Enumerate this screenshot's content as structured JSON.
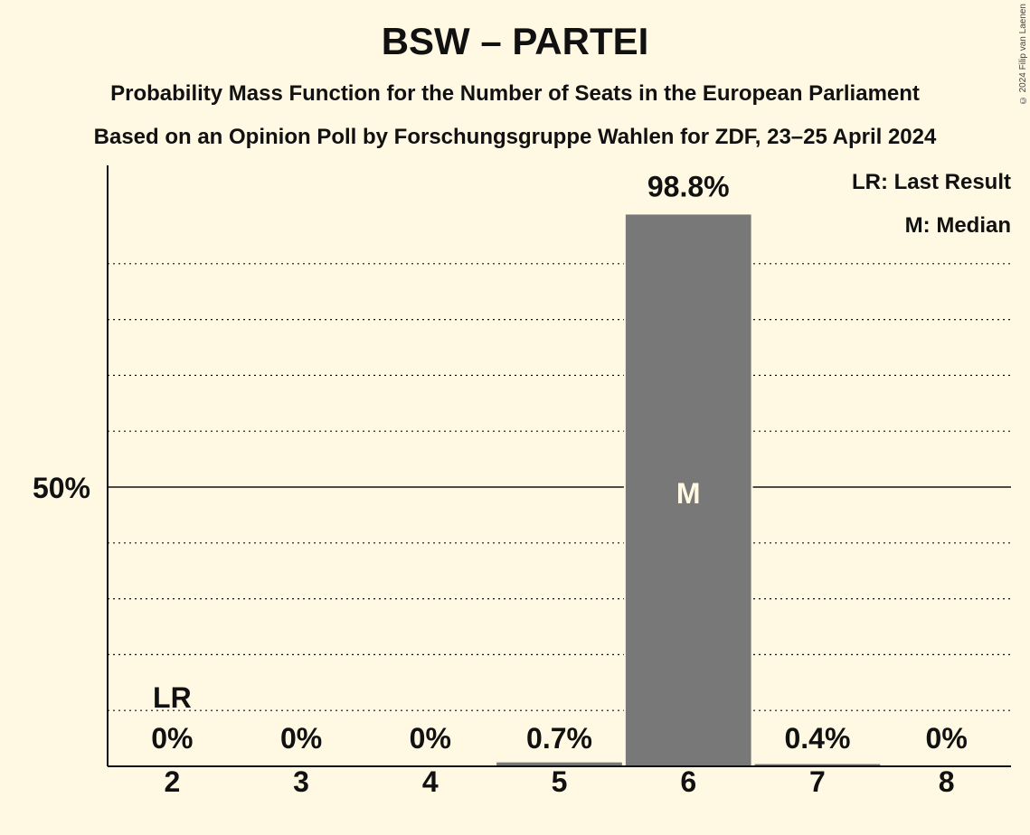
{
  "title": "BSW – PARTEI",
  "subtitle_1": "Probability Mass Function for the Number of Seats in the European Parliament",
  "subtitle_2": "Based on an Opinion Poll by Forschungsgruppe Wahlen for ZDF, 23–25 April 2024",
  "copyright": "© 2024 Filip van Laenen",
  "legend": {
    "last_result": "LR: Last Result",
    "median": "M: Median"
  },
  "colors": {
    "background": "#fff8e2",
    "bar": "#787878",
    "axis": "#111111"
  },
  "chart_data": {
    "type": "bar",
    "categories": [
      "2",
      "3",
      "4",
      "5",
      "6",
      "7",
      "8"
    ],
    "values": [
      0,
      0,
      0,
      0.7,
      98.8,
      0.4,
      0
    ],
    "value_labels": [
      "0%",
      "0%",
      "0%",
      "0.7%",
      "98.8%",
      "0.4%",
      "0%"
    ],
    "ylim": [
      0,
      100
    ],
    "y_tick_labels": [
      {
        "value": 50,
        "label": "50%"
      }
    ],
    "gridlines_every": 10,
    "last_result_category": "2",
    "last_result_marker": "LR",
    "median_category": "6",
    "median_marker": "M",
    "legend_position": "top-right"
  }
}
